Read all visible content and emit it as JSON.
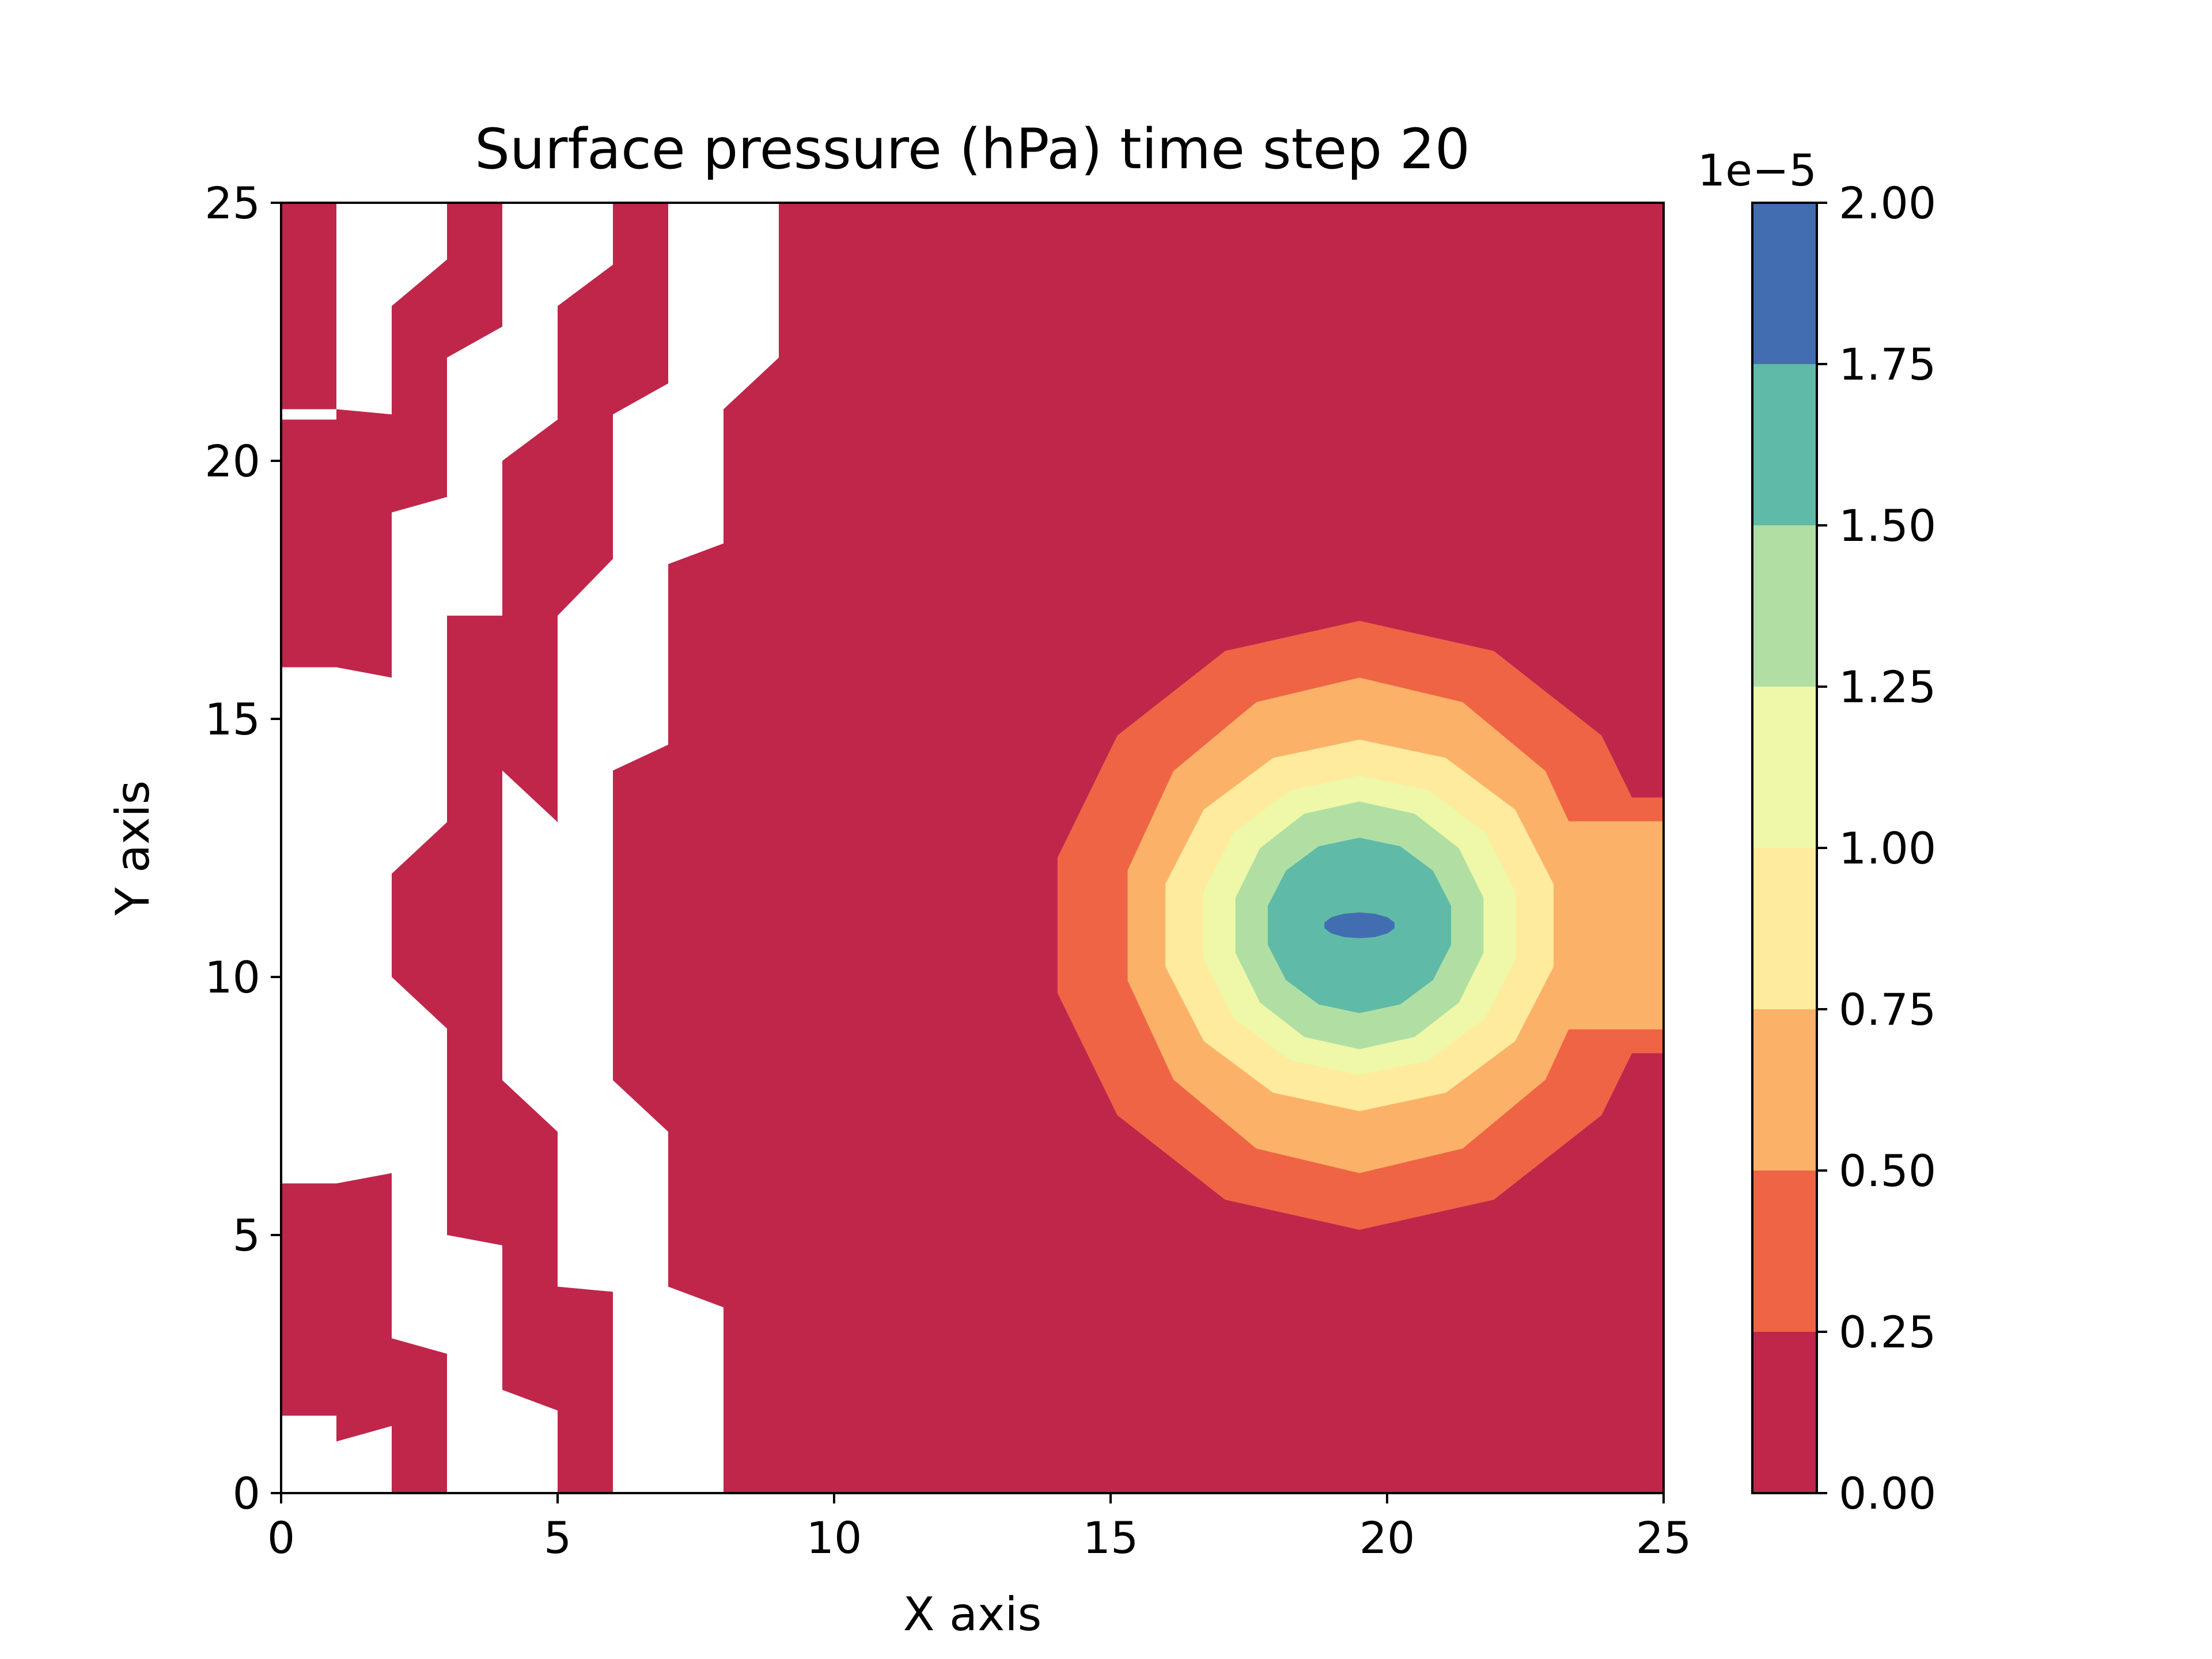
{
  "chart_data": {
    "type": "contourf",
    "title": "Surface pressure (hPa) time step 20",
    "xlabel": "X axis",
    "ylabel": "Y axis",
    "xlim": [
      0,
      25
    ],
    "ylim": [
      0,
      25
    ],
    "x_ticks": [
      "0",
      "5",
      "10",
      "15",
      "20",
      "25"
    ],
    "y_ticks": [
      "0",
      "5",
      "10",
      "15",
      "20",
      "25"
    ],
    "grid": false,
    "colormap": "Spectral",
    "colorbar": {
      "multiplier_label": "1e−5",
      "levels": [
        0.0,
        0.25,
        0.5,
        0.75,
        1.0,
        1.25,
        1.5,
        1.75,
        2.0
      ],
      "tick_labels": [
        "0.00",
        "0.25",
        "0.50",
        "0.75",
        "1.00",
        "1.25",
        "1.50",
        "1.75",
        "2.00"
      ],
      "colors": [
        "#c0264a",
        "#ef6445",
        "#fbb268",
        "#feeb9d",
        "#eef8a8",
        "#b1dfa3",
        "#5fbaa8",
        "#436db1"
      ]
    },
    "background_level_color": "#c0264a",
    "blank_region_color": "#ffffff",
    "blank_regions": [
      [
        [
          0,
          16
        ],
        [
          1,
          16
        ],
        [
          1,
          6
        ],
        [
          0,
          6
        ]
      ],
      [
        [
          0,
          20.8
        ],
        [
          1,
          20.8
        ],
        [
          1,
          21
        ],
        [
          0,
          21
        ]
      ],
      [
        [
          0,
          1.5
        ],
        [
          1,
          1.5
        ],
        [
          1,
          0
        ],
        [
          0,
          0
        ]
      ],
      [
        [
          1,
          25
        ],
        [
          3,
          25
        ],
        [
          3,
          23.9
        ],
        [
          2,
          23
        ],
        [
          2,
          20.9
        ],
        [
          1,
          21
        ]
      ],
      [
        [
          1,
          16
        ],
        [
          2,
          15.8
        ],
        [
          2,
          19
        ],
        [
          3,
          19.3
        ],
        [
          3,
          22
        ],
        [
          4,
          22.6
        ],
        [
          4,
          25
        ],
        [
          6,
          25
        ],
        [
          6,
          23.8
        ],
        [
          5,
          23
        ],
        [
          5,
          20.8
        ],
        [
          4,
          20
        ],
        [
          4,
          17
        ],
        [
          3,
          17
        ],
        [
          3,
          13
        ],
        [
          2,
          12
        ],
        [
          2,
          10
        ],
        [
          3,
          9
        ],
        [
          3,
          5
        ],
        [
          4,
          4.8
        ],
        [
          4,
          2
        ],
        [
          5,
          1.6
        ],
        [
          5,
          0
        ],
        [
          3,
          0
        ],
        [
          3,
          2.7
        ],
        [
          2,
          3
        ],
        [
          2,
          6.2
        ],
        [
          1,
          6
        ]
      ],
      [
        [
          1,
          1
        ],
        [
          2,
          1.3
        ],
        [
          2,
          0
        ],
        [
          1,
          0
        ]
      ],
      [
        [
          4,
          14
        ],
        [
          5,
          13
        ],
        [
          5,
          17
        ],
        [
          6,
          18.1
        ],
        [
          6,
          20.9
        ],
        [
          7,
          21.5
        ],
        [
          7,
          25
        ],
        [
          9,
          25
        ],
        [
          9,
          22
        ],
        [
          8,
          21
        ],
        [
          8,
          18.4
        ],
        [
          7,
          18
        ],
        [
          7,
          14.5
        ],
        [
          6,
          14
        ],
        [
          6,
          8
        ],
        [
          7,
          7
        ],
        [
          7,
          4
        ],
        [
          8,
          3.6
        ],
        [
          8,
          0
        ],
        [
          6,
          0
        ],
        [
          6,
          3.9
        ],
        [
          5,
          4
        ],
        [
          5,
          7
        ],
        [
          4,
          8
        ]
      ]
    ],
    "contour_bands": [
      {
        "level_min": 0.25,
        "center": [
          19.5,
          11.0
        ],
        "rx": 5.6,
        "ry": 5.9,
        "extends_to": 25
      },
      {
        "level_min": 0.5,
        "center": [
          19.5,
          11.0
        ],
        "rx": 4.3,
        "ry": 4.8,
        "extends_to": 25
      },
      {
        "level_min": 0.75,
        "center": [
          19.5,
          11.0
        ],
        "rx": 3.6,
        "ry": 3.6
      },
      {
        "level_min": 1.0,
        "center": [
          19.5,
          11.0
        ],
        "rx": 2.9,
        "ry": 2.9
      },
      {
        "level_min": 1.25,
        "center": [
          19.5,
          11.0
        ],
        "rx": 2.3,
        "ry": 2.4
      },
      {
        "level_min": 1.5,
        "center": [
          19.5,
          11.0
        ],
        "rx": 1.7,
        "ry": 1.7
      },
      {
        "level_min": 1.75,
        "center": [
          19.5,
          11.0
        ],
        "rx": 0.65,
        "ry": 0.25
      }
    ]
  }
}
